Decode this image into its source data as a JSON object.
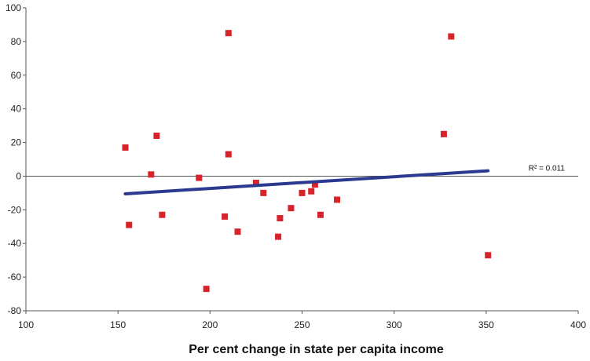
{
  "chart_data": {
    "type": "scatter",
    "title": "",
    "xlabel": "Per cent change in state per capita income",
    "ylabel": "",
    "xlim": [
      100,
      400
    ],
    "ylim": [
      -80,
      100
    ],
    "x_ticks": [
      100,
      150,
      200,
      250,
      300,
      350,
      400
    ],
    "y_ticks": [
      -80,
      -60,
      -40,
      -20,
      0,
      20,
      40,
      60,
      80,
      100
    ],
    "grid": false,
    "colors": {
      "points": "#d9232b",
      "trendline": "#2b3990",
      "axis": "#555555"
    },
    "points": [
      {
        "x": 154,
        "y": 17
      },
      {
        "x": 156,
        "y": -29
      },
      {
        "x": 168,
        "y": 1
      },
      {
        "x": 171,
        "y": 24
      },
      {
        "x": 174,
        "y": -23
      },
      {
        "x": 194,
        "y": -1
      },
      {
        "x": 198,
        "y": -67
      },
      {
        "x": 208,
        "y": -24
      },
      {
        "x": 210,
        "y": 85
      },
      {
        "x": 210,
        "y": 13
      },
      {
        "x": 215,
        "y": -33
      },
      {
        "x": 225,
        "y": -4
      },
      {
        "x": 229,
        "y": -10
      },
      {
        "x": 237,
        "y": -36
      },
      {
        "x": 238,
        "y": -25
      },
      {
        "x": 244,
        "y": -19
      },
      {
        "x": 250,
        "y": -10
      },
      {
        "x": 255,
        "y": -9
      },
      {
        "x": 257,
        "y": -5
      },
      {
        "x": 260,
        "y": -23
      },
      {
        "x": 269,
        "y": -14
      },
      {
        "x": 327,
        "y": 25
      },
      {
        "x": 331,
        "y": 83
      },
      {
        "x": 351,
        "y": -47
      }
    ],
    "trendline": {
      "x": [
        154,
        351
      ],
      "y": [
        -10.5,
        3.2
      ]
    },
    "annotation": "R² = 0.011"
  }
}
